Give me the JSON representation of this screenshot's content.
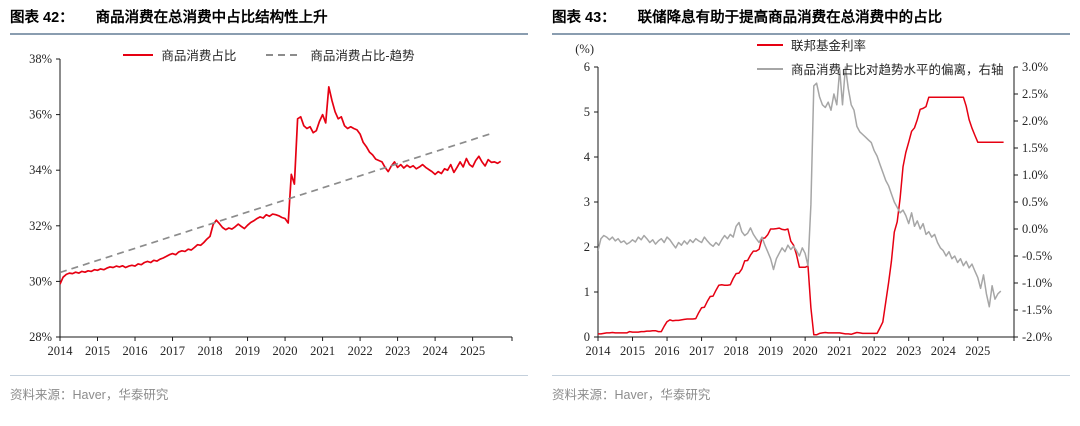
{
  "chart_data": [
    {
      "type": "line",
      "figure_label": "图表 42：",
      "title": "商品消费在总消费中占比结构性上升",
      "source": "资料来源：Haver，华泰研究",
      "legend": [
        {
          "label": "商品消费占比",
          "color": "#e60012",
          "dash": null,
          "swatch_width": 30
        },
        {
          "label": "商品消费占比-趋势",
          "color": "#8c8c8c",
          "dash": "7 5",
          "swatch_width": 36
        }
      ],
      "legend_layout": "center",
      "x_range": [
        2014,
        2026.05
      ],
      "x_ticks": [
        2014,
        2015,
        2016,
        2017,
        2018,
        2019,
        2020,
        2021,
        2022,
        2023,
        2024,
        2025
      ],
      "y_left": {
        "min": 28,
        "max": 38,
        "ticks": [
          {
            "v": 28,
            "label": "28%"
          },
          {
            "v": 30,
            "label": "30%"
          },
          {
            "v": 32,
            "label": "32%"
          },
          {
            "v": 34,
            "label": "34%"
          },
          {
            "v": 36,
            "label": "36%"
          },
          {
            "v": 38,
            "label": "38%"
          }
        ]
      },
      "series": [
        {
          "name": "商品消费占比",
          "axis": "left",
          "color": "#e60012",
          "width": 1.7,
          "x_start": 2014,
          "x_step": 0.0833333,
          "values": [
            29.9,
            30.15,
            30.25,
            30.3,
            30.28,
            30.33,
            30.3,
            30.36,
            30.33,
            30.38,
            30.36,
            30.42,
            30.4,
            30.45,
            30.42,
            30.48,
            30.52,
            30.5,
            30.55,
            30.52,
            30.56,
            30.5,
            30.55,
            30.58,
            30.55,
            30.63,
            30.6,
            30.68,
            30.72,
            30.68,
            30.76,
            30.73,
            30.8,
            30.84,
            30.9,
            30.96,
            31.0,
            30.96,
            31.06,
            31.1,
            31.08,
            31.16,
            31.13,
            31.22,
            31.32,
            31.3,
            31.4,
            31.52,
            31.62,
            32.05,
            32.2,
            32.08,
            31.94,
            31.86,
            31.92,
            31.88,
            31.96,
            32.06,
            31.98,
            31.9,
            32.02,
            32.12,
            32.18,
            32.26,
            32.32,
            32.28,
            32.4,
            32.34,
            32.42,
            32.4,
            32.36,
            32.3,
            32.26,
            32.1,
            33.85,
            33.5,
            35.85,
            35.92,
            35.6,
            35.5,
            35.56,
            35.35,
            35.42,
            35.75,
            36.0,
            35.7,
            37.0,
            36.5,
            36.1,
            35.85,
            35.92,
            35.6,
            35.5,
            35.56,
            35.5,
            35.45,
            35.3,
            35.0,
            34.85,
            34.65,
            34.55,
            34.4,
            34.35,
            34.3,
            34.1,
            33.95,
            34.15,
            34.3,
            34.1,
            34.2,
            34.08,
            34.18,
            34.1,
            34.16,
            34.05,
            34.12,
            34.2,
            34.1,
            34.02,
            33.95,
            33.85,
            33.95,
            33.88,
            34.05,
            34.0,
            34.2,
            33.92,
            34.1,
            34.3,
            34.12,
            34.42,
            34.2,
            34.12,
            34.35,
            34.5,
            34.3,
            34.15,
            34.38,
            34.28,
            34.3,
            34.25,
            34.32
          ]
        },
        {
          "name": "商品消费占比-趋势",
          "axis": "left",
          "color": "#8c8c8c",
          "width": 1.7,
          "dash": "7 5",
          "line": {
            "x": [
              2014,
              2025.45
            ],
            "y": [
              30.32,
              35.3
            ]
          }
        }
      ]
    },
    {
      "type": "line",
      "figure_label": "图表 43：",
      "title": "联储降息有助于提高商品消费在总消费中的占比",
      "source": "资料来源：Haver，华泰研究",
      "unit_label": "(%)",
      "legend": [
        {
          "label": "联邦基金利率",
          "color": "#e60012",
          "dash": null,
          "swatch_width": 26
        },
        {
          "label": "商品消费占比对趋势水平的偏离，右轴",
          "color": "#a6a6a6",
          "dash": null,
          "swatch_width": 26
        }
      ],
      "legend_layout": "stack",
      "x_range": [
        2014,
        2026.05
      ],
      "x_ticks": [
        2014,
        2015,
        2016,
        2017,
        2018,
        2019,
        2020,
        2021,
        2022,
        2023,
        2024,
        2025
      ],
      "y_left": {
        "min": 0,
        "max": 6,
        "ticks": [
          {
            "v": 0,
            "label": "0"
          },
          {
            "v": 1,
            "label": "1"
          },
          {
            "v": 2,
            "label": "2"
          },
          {
            "v": 3,
            "label": "3"
          },
          {
            "v": 4,
            "label": "4"
          },
          {
            "v": 5,
            "label": "5"
          },
          {
            "v": 6,
            "label": "6"
          }
        ]
      },
      "y_right": {
        "min": -2,
        "max": 3,
        "ticks": [
          {
            "v": 3,
            "label": "3.0%"
          },
          {
            "v": 2.5,
            "label": "2.5%"
          },
          {
            "v": 2,
            "label": "2.0%"
          },
          {
            "v": 1.5,
            "label": "1.5%"
          },
          {
            "v": 1,
            "label": "1.0%"
          },
          {
            "v": 0.5,
            "label": "0.5%"
          },
          {
            "v": 0,
            "label": "0.0%"
          },
          {
            "v": -0.5,
            "label": "-0.5%"
          },
          {
            "v": -1,
            "label": "-1.0%"
          },
          {
            "v": -1.5,
            "label": "-1.5%"
          },
          {
            "v": -2,
            "label": "-2.0%"
          }
        ]
      },
      "series": [
        {
          "name": "联邦基金利率",
          "axis": "left",
          "color": "#e60012",
          "width": 1.5,
          "x_start": 2014,
          "x_step": 0.0833333,
          "values": [
            0.07,
            0.07,
            0.08,
            0.09,
            0.09,
            0.1,
            0.09,
            0.09,
            0.09,
            0.09,
            0.09,
            0.12,
            0.11,
            0.11,
            0.11,
            0.12,
            0.12,
            0.13,
            0.13,
            0.14,
            0.14,
            0.12,
            0.12,
            0.24,
            0.34,
            0.38,
            0.36,
            0.37,
            0.37,
            0.38,
            0.39,
            0.4,
            0.4,
            0.4,
            0.41,
            0.54,
            0.65,
            0.66,
            0.79,
            0.9,
            0.91,
            1.04,
            1.15,
            1.16,
            1.15,
            1.15,
            1.16,
            1.3,
            1.41,
            1.42,
            1.51,
            1.69,
            1.7,
            1.82,
            1.91,
            1.91,
            1.95,
            2.19,
            2.2,
            2.27,
            2.4,
            2.4,
            2.41,
            2.42,
            2.39,
            2.38,
            2.4,
            2.13,
            2.04,
            1.83,
            1.55,
            1.55,
            1.55,
            1.58,
            0.65,
            0.05,
            0.05,
            0.08,
            0.09,
            0.1,
            0.09,
            0.09,
            0.09,
            0.09,
            0.09,
            0.08,
            0.07,
            0.07,
            0.06,
            0.08,
            0.1,
            0.09,
            0.08,
            0.08,
            0.08,
            0.08,
            0.08,
            0.08,
            0.2,
            0.33,
            0.77,
            1.21,
            1.68,
            2.33,
            2.56,
            3.08,
            3.78,
            4.1,
            4.33,
            4.57,
            4.65,
            4.83,
            5.06,
            5.08,
            5.12,
            5.33,
            5.33,
            5.33,
            5.33,
            5.33,
            5.33,
            5.33,
            5.33,
            5.33,
            5.33,
            5.33,
            5.33,
            5.33,
            5.13,
            4.83,
            4.64,
            4.48,
            4.33,
            4.33,
            4.33,
            4.33,
            4.33,
            4.33,
            4.33,
            4.33,
            4.33,
            4.33
          ]
        },
        {
          "name": "商品消费占比对趋势水平的偏离，右轴",
          "axis": "right",
          "color": "#a6a6a6",
          "width": 1.5,
          "x_start": 2014,
          "x_step": 0.0833333,
          "values": [
            -0.4,
            -0.18,
            -0.12,
            -0.15,
            -0.2,
            -0.15,
            -0.22,
            -0.18,
            -0.25,
            -0.22,
            -0.28,
            -0.25,
            -0.2,
            -0.24,
            -0.15,
            -0.2,
            -0.12,
            -0.18,
            -0.25,
            -0.2,
            -0.28,
            -0.22,
            -0.18,
            -0.25,
            -0.15,
            -0.2,
            -0.28,
            -0.35,
            -0.25,
            -0.3,
            -0.22,
            -0.28,
            -0.2,
            -0.25,
            -0.18,
            -0.22,
            -0.25,
            -0.15,
            -0.22,
            -0.28,
            -0.32,
            -0.25,
            -0.3,
            -0.2,
            -0.12,
            -0.18,
            -0.1,
            -0.15,
            0.05,
            0.12,
            -0.05,
            -0.12,
            -0.08,
            0.02,
            -0.1,
            -0.18,
            -0.25,
            -0.15,
            -0.3,
            -0.42,
            -0.55,
            -0.75,
            -0.55,
            -0.45,
            -0.35,
            -0.42,
            -0.3,
            -0.38,
            -0.32,
            -0.4,
            -0.5,
            -0.35,
            -0.45,
            -0.68,
            0.45,
            2.65,
            2.7,
            2.45,
            2.3,
            2.25,
            2.35,
            2.2,
            2.5,
            2.3,
            2.95,
            2.3,
            3.0,
            2.6,
            2.3,
            2.2,
            1.9,
            1.8,
            1.75,
            1.7,
            1.65,
            1.6,
            1.45,
            1.35,
            1.2,
            1.05,
            0.9,
            0.8,
            0.65,
            0.5,
            0.4,
            0.3,
            0.35,
            0.25,
            0.1,
            0.3,
            0.05,
            0.15,
            0.0,
            0.1,
            -0.1,
            -0.05,
            -0.15,
            -0.1,
            -0.25,
            -0.35,
            -0.4,
            -0.5,
            -0.42,
            -0.55,
            -0.5,
            -0.62,
            -0.55,
            -0.68,
            -0.6,
            -0.72,
            -0.65,
            -0.78,
            -0.9,
            -1.1,
            -0.85,
            -1.2,
            -1.44,
            -1.05,
            -1.3,
            -1.2,
            -1.15
          ]
        }
      ]
    }
  ]
}
